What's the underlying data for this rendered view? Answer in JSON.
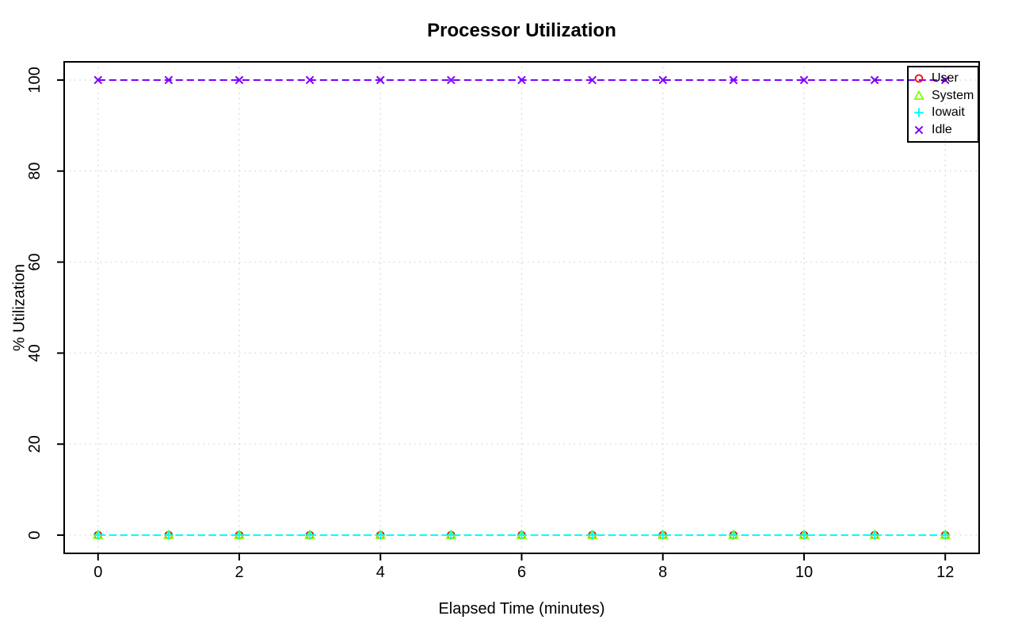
{
  "chart_data": {
    "type": "line",
    "title": "Processor Utilization",
    "xlabel": "Elapsed Time (minutes)",
    "ylabel": "% Utilization",
    "x": [
      0,
      1,
      2,
      3,
      4,
      5,
      6,
      7,
      8,
      9,
      10,
      11,
      12
    ],
    "series": [
      {
        "name": "User",
        "color": "#FF0000",
        "marker": "circle",
        "values": [
          0,
          0,
          0,
          0,
          0,
          0,
          0,
          0,
          0,
          0,
          0,
          0,
          0
        ]
      },
      {
        "name": "System",
        "color": "#80FF00",
        "marker": "triangle",
        "values": [
          0,
          0,
          0,
          0,
          0,
          0,
          0,
          0,
          0,
          0,
          0,
          0,
          0
        ]
      },
      {
        "name": "Iowait",
        "color": "#00FFFF",
        "marker": "plus",
        "values": [
          0,
          0,
          0,
          0,
          0,
          0,
          0,
          0,
          0,
          0,
          0,
          0,
          0
        ]
      },
      {
        "name": "Idle",
        "color": "#8000FF",
        "marker": "x",
        "values": [
          100,
          100,
          100,
          100,
          100,
          100,
          100,
          100,
          100,
          100,
          100,
          100,
          100
        ]
      }
    ],
    "xticks": [
      0,
      2,
      4,
      6,
      8,
      10,
      12
    ],
    "yticks": [
      0,
      20,
      40,
      60,
      80,
      100
    ],
    "xlim": [
      0,
      12
    ],
    "ylim": [
      0,
      100
    ],
    "grid": true,
    "grid_style": "dotted",
    "grid_color": "#d3d3d3",
    "line_style": "dashed",
    "axis_color": "#000000",
    "legend_position": "top-right"
  }
}
